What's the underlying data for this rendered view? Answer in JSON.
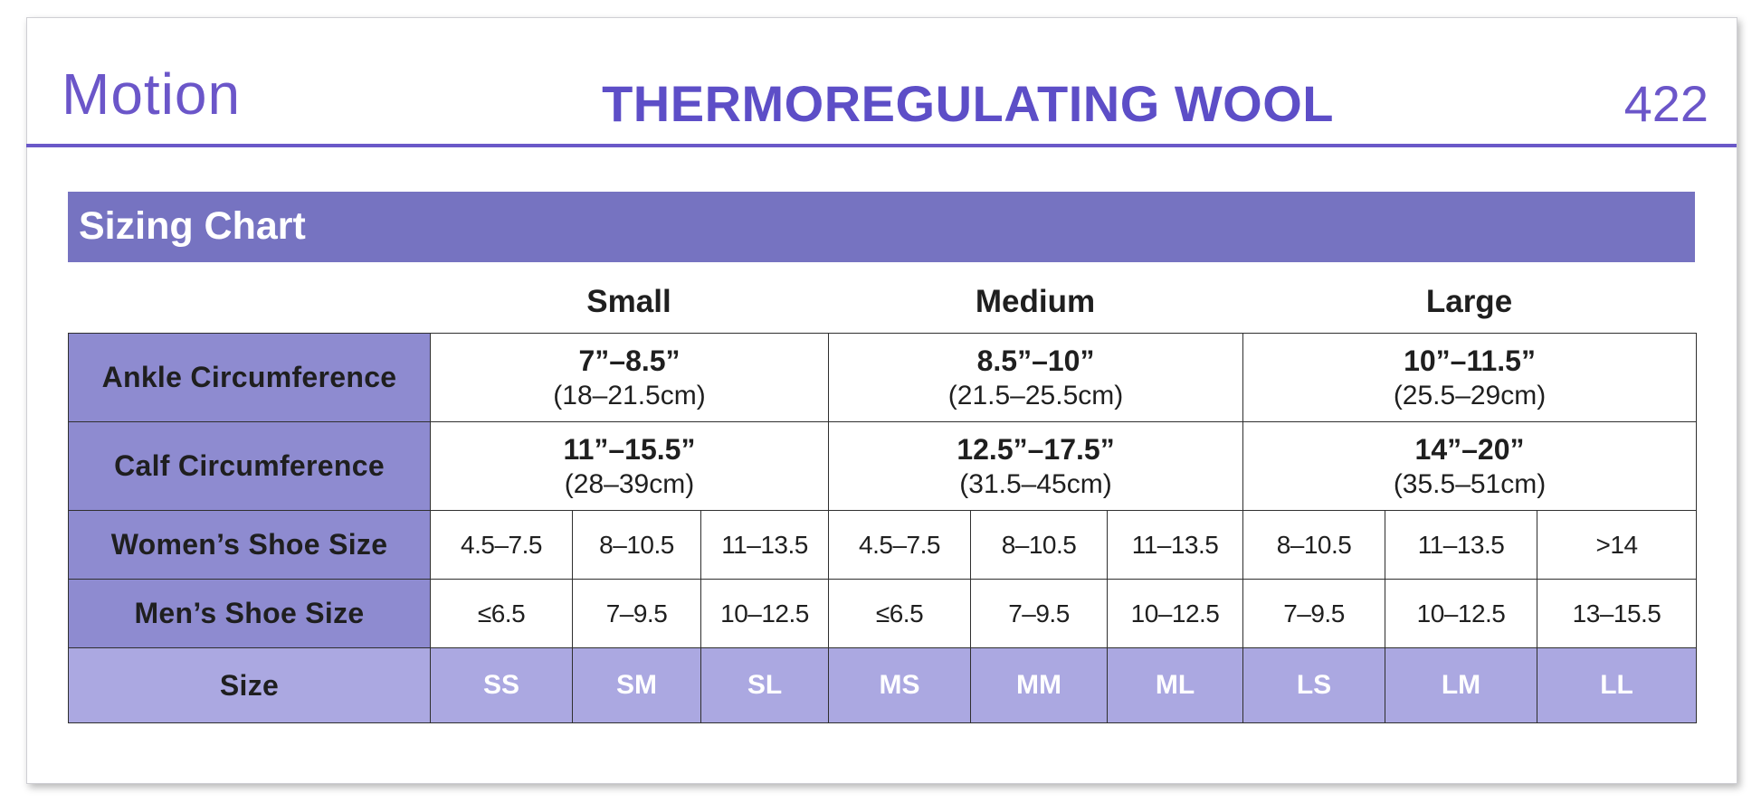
{
  "header": {
    "brand": "Motion",
    "product": "THERMOREGULATING WOOL",
    "model": "422"
  },
  "banner": {
    "title": "Sizing Chart"
  },
  "groups": [
    "Small",
    "Medium",
    "Large"
  ],
  "rows": {
    "ankle": {
      "label": "Ankle Circumference",
      "values": [
        {
          "in": "7”–8.5”",
          "cm": "(18–21.5cm)"
        },
        {
          "in": "8.5”–10”",
          "cm": "(21.5–25.5cm)"
        },
        {
          "in": "10”–11.5”",
          "cm": "(25.5–29cm)"
        }
      ]
    },
    "calf": {
      "label": "Calf Circumference",
      "values": [
        {
          "in": "11”–15.5”",
          "cm": "(28–39cm)"
        },
        {
          "in": "12.5”–17.5”",
          "cm": "(31.5–45cm)"
        },
        {
          "in": "14”–20”",
          "cm": "(35.5–51cm)"
        }
      ]
    },
    "womens": {
      "label": "Women’s Shoe Size",
      "values": [
        "4.5–7.5",
        "8–10.5",
        "11–13.5",
        "4.5–7.5",
        "8–10.5",
        "11–13.5",
        "8–10.5",
        "11–13.5",
        ">14"
      ]
    },
    "mens": {
      "label": "Men’s Shoe Size",
      "values": [
        "≤6.5",
        "7–9.5",
        "10–12.5",
        "≤6.5",
        "7–9.5",
        "10–12.5",
        "7–9.5",
        "10–12.5",
        "13–15.5"
      ]
    },
    "size": {
      "label": "Size",
      "values": [
        "SS",
        "SM",
        "SL",
        "MS",
        "MM",
        "ML",
        "LS",
        "LM",
        "LL"
      ]
    }
  },
  "colors": {
    "brand_purple": "#6b56c9",
    "banner": "#7673c1",
    "row_header": "#8e8bd0",
    "size_row": "#aba8e1"
  }
}
